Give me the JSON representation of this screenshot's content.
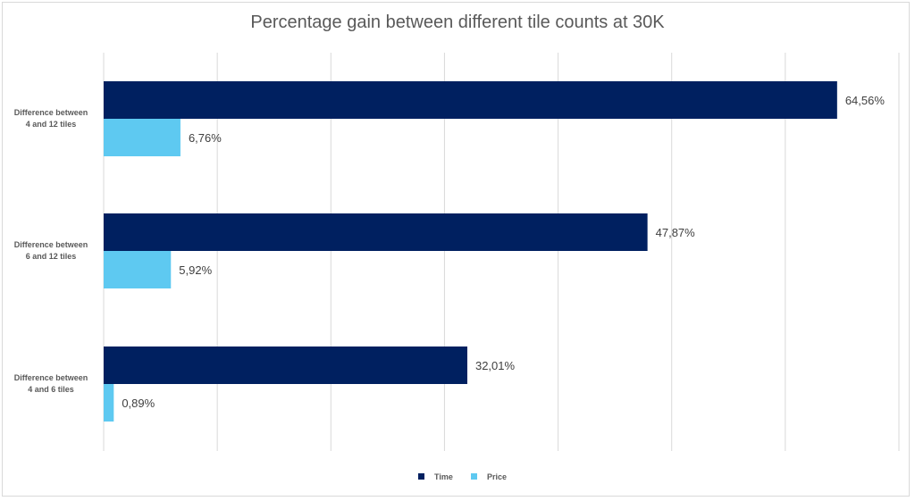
{
  "chart_data": {
    "type": "bar",
    "orientation": "horizontal",
    "title": "Percentage gain between different tile counts at 30K",
    "categories": [
      [
        "Difference between",
        "4 and 12 tiles"
      ],
      [
        "Difference between",
        "6 and 12 tiles"
      ],
      [
        "Difference between",
        "4 and 6 tiles"
      ]
    ],
    "series": [
      {
        "name": "Time",
        "color": "#002060",
        "values": [
          64.56,
          47.87,
          32.01
        ],
        "labels": [
          "64,56%",
          "47,87%",
          "32,01%"
        ]
      },
      {
        "name": "Price",
        "color": "#5ec9f1",
        "values": [
          6.76,
          5.92,
          0.89
        ],
        "labels": [
          "6,76%",
          "5,92%",
          "0,89%"
        ]
      }
    ],
    "xlim": [
      0,
      70
    ],
    "grid": true,
    "legend": "bottom"
  }
}
